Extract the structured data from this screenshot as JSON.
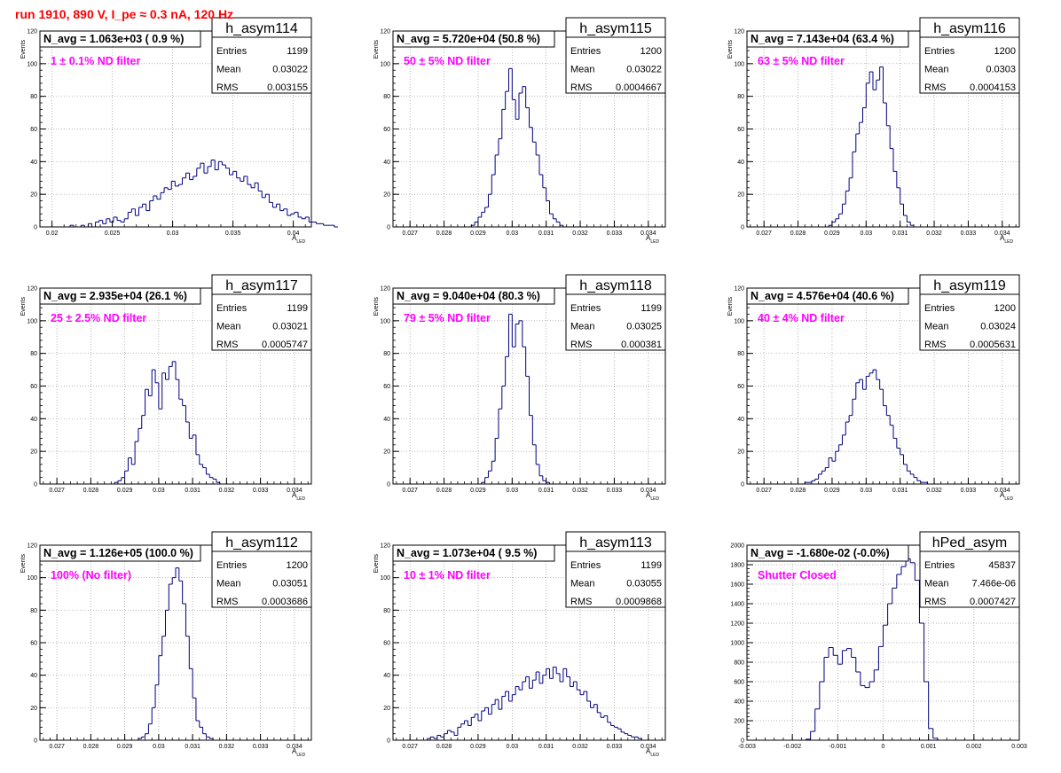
{
  "page": {
    "run_title": "run 1910,   890 V, I_pe ≈ 0.3 nA, 120 Hz"
  },
  "chart_data": [
    {
      "type": "bar",
      "hist": "h_asym114",
      "label": "1 ± 0.1% ND filter",
      "navg": "N_avg = 1.063e+03 ( 0.9 %)",
      "stats": {
        "entries": "1199",
        "mean": "0.03022",
        "rms": "0.003155"
      },
      "xlabel": "A",
      "xlabel_sub": "LED",
      "ylabel": "Events",
      "xlim": [
        0.019,
        0.0415
      ],
      "ylim": [
        0,
        120
      ],
      "xticks": [
        0.02,
        0.025,
        0.03,
        0.035,
        0.04
      ],
      "xticklabels": [
        "0.02",
        "0.025",
        "0.03",
        "0.035",
        "0.04"
      ],
      "yticks": [
        0,
        20,
        40,
        60,
        80,
        100,
        120
      ],
      "yticklabels": [
        "0",
        "20",
        "40",
        "60",
        "80",
        "100",
        "120"
      ],
      "grid": true,
      "x_start": 0.0215,
      "bin_width": 0.0003,
      "values": [
        1,
        0,
        0,
        1,
        0,
        2,
        0,
        3,
        4,
        2,
        5,
        3,
        6,
        4,
        3,
        5,
        9,
        11,
        7,
        12,
        14,
        10,
        16,
        19,
        17,
        21,
        24,
        23,
        28,
        25,
        26,
        30,
        33,
        29,
        31,
        36,
        39,
        33,
        37,
        41,
        35,
        40,
        38,
        36,
        32,
        34,
        30,
        28,
        31,
        26,
        24,
        27,
        22,
        18,
        20,
        15,
        12,
        14,
        10,
        11,
        7,
        8,
        9,
        6,
        5,
        6,
        3,
        3,
        2,
        2,
        1,
        1,
        1,
        0
      ]
    },
    {
      "type": "bar",
      "hist": "h_asym115",
      "label": "50 ± 5% ND filter",
      "navg": "N_avg = 5.720e+04 (50.8 %)",
      "stats": {
        "entries": "1200",
        "mean": "0.03022",
        "rms": "0.0004667"
      },
      "xlabel": "A",
      "xlabel_sub": "LED",
      "ylabel": "Events",
      "xlim": [
        0.0265,
        0.0345
      ],
      "ylim": [
        0,
        120
      ],
      "xticks": [
        0.027,
        0.028,
        0.029,
        0.03,
        0.031,
        0.032,
        0.033,
        0.034
      ],
      "xticklabels": [
        "0.027",
        "0.028",
        "0.029",
        "0.03",
        "0.031",
        "0.032",
        "0.033",
        "0.034"
      ],
      "yticks": [
        0,
        20,
        40,
        60,
        80,
        100,
        120
      ],
      "yticklabels": [
        "0",
        "20",
        "40",
        "60",
        "80",
        "100",
        "120"
      ],
      "grid": true,
      "x_start": 0.0288,
      "bin_width": 0.0001,
      "values": [
        1,
        3,
        6,
        9,
        12,
        20,
        32,
        44,
        54,
        72,
        83,
        97,
        78,
        66,
        82,
        86,
        73,
        61,
        52,
        44,
        32,
        24,
        16,
        8,
        5,
        3,
        1
      ]
    },
    {
      "type": "bar",
      "hist": "h_asym116",
      "label": "63 ± 5% ND filter",
      "navg": "N_avg = 7.143e+04 (63.4 %)",
      "stats": {
        "entries": "1200",
        "mean": "0.0303",
        "rms": "0.0004153"
      },
      "xlabel": "A",
      "xlabel_sub": "LED",
      "ylabel": "Events",
      "xlim": [
        0.0265,
        0.0345
      ],
      "ylim": [
        0,
        120
      ],
      "xticks": [
        0.027,
        0.028,
        0.029,
        0.03,
        0.031,
        0.032,
        0.033,
        0.034
      ],
      "xticklabels": [
        "0.027",
        "0.028",
        "0.029",
        "0.03",
        "0.031",
        "0.032",
        "0.033",
        "0.034"
      ],
      "yticks": [
        0,
        20,
        40,
        60,
        80,
        100,
        120
      ],
      "yticklabels": [
        "0",
        "20",
        "40",
        "60",
        "80",
        "100",
        "120"
      ],
      "grid": true,
      "x_start": 0.0289,
      "bin_width": 0.0001,
      "values": [
        1,
        3,
        5,
        8,
        14,
        22,
        30,
        46,
        57,
        64,
        73,
        88,
        95,
        84,
        90,
        98,
        76,
        62,
        48,
        34,
        24,
        14,
        7,
        3,
        1
      ]
    },
    {
      "type": "bar",
      "hist": "h_asym117",
      "label": "25 ± 2.5% ND filter",
      "navg": "N_avg = 2.935e+04 (26.1 %)",
      "stats": {
        "entries": "1199",
        "mean": "0.03021",
        "rms": "0.0005747"
      },
      "xlabel": "A",
      "xlabel_sub": "LED",
      "ylabel": "Events",
      "xlim": [
        0.0265,
        0.0345
      ],
      "ylim": [
        0,
        120
      ],
      "xticks": [
        0.027,
        0.028,
        0.029,
        0.03,
        0.031,
        0.032,
        0.033,
        0.034
      ],
      "xticklabels": [
        "0.027",
        "0.028",
        "0.029",
        "0.03",
        "0.031",
        "0.032",
        "0.033",
        "0.034"
      ],
      "yticks": [
        0,
        20,
        40,
        60,
        80,
        100,
        120
      ],
      "yticklabels": [
        "0",
        "20",
        "40",
        "60",
        "80",
        "100",
        "120"
      ],
      "grid": true,
      "x_start": 0.0287,
      "bin_width": 0.0001,
      "values": [
        1,
        2,
        4,
        8,
        16,
        12,
        26,
        34,
        42,
        58,
        54,
        70,
        62,
        46,
        68,
        64,
        72,
        75,
        64,
        52,
        48,
        38,
        28,
        30,
        18,
        12,
        10,
        6,
        4,
        3,
        1
      ]
    },
    {
      "type": "bar",
      "hist": "h_asym118",
      "label": "79 ± 5% ND filter",
      "navg": "N_avg = 9.040e+04 (80.3 %)",
      "stats": {
        "entries": "1199",
        "mean": "0.03025",
        "rms": "0.000381"
      },
      "xlabel": "A",
      "xlabel_sub": "LED",
      "ylabel": "Events",
      "xlim": [
        0.0265,
        0.0345
      ],
      "ylim": [
        0,
        120
      ],
      "xticks": [
        0.027,
        0.028,
        0.029,
        0.03,
        0.031,
        0.032,
        0.033,
        0.034
      ],
      "xticklabels": [
        "0.027",
        "0.028",
        "0.029",
        "0.03",
        "0.031",
        "0.032",
        "0.033",
        "0.034"
      ],
      "yticks": [
        0,
        20,
        40,
        60,
        80,
        100,
        120
      ],
      "yticklabels": [
        "0",
        "20",
        "40",
        "60",
        "80",
        "100",
        "120"
      ],
      "grid": true,
      "x_start": 0.0291,
      "bin_width": 0.0001,
      "values": [
        1,
        4,
        8,
        14,
        28,
        46,
        60,
        78,
        104,
        84,
        98,
        100,
        84,
        66,
        42,
        24,
        12,
        5,
        2,
        1
      ]
    },
    {
      "type": "bar",
      "hist": "h_asym119",
      "label": "40 ± 4% ND filter",
      "navg": "N_avg = 4.576e+04 (40.6 %)",
      "stats": {
        "entries": "1200",
        "mean": "0.03024",
        "rms": "0.0005631"
      },
      "xlabel": "A",
      "xlabel_sub": "LED",
      "ylabel": "Events",
      "xlim": [
        0.0265,
        0.0345
      ],
      "ylim": [
        0,
        120
      ],
      "xticks": [
        0.027,
        0.028,
        0.029,
        0.03,
        0.031,
        0.032,
        0.033,
        0.034
      ],
      "xticklabels": [
        "0.027",
        "0.028",
        "0.029",
        "0.03",
        "0.031",
        "0.032",
        "0.033",
        "0.034"
      ],
      "yticks": [
        0,
        20,
        40,
        60,
        80,
        100,
        120
      ],
      "yticklabels": [
        "0",
        "20",
        "40",
        "60",
        "80",
        "100",
        "120"
      ],
      "grid": true,
      "x_start": 0.0282,
      "bin_width": 0.0001,
      "values": [
        1,
        1,
        2,
        3,
        6,
        8,
        10,
        16,
        14,
        20,
        24,
        30,
        38,
        42,
        52,
        62,
        64,
        58,
        66,
        68,
        70,
        64,
        58,
        48,
        42,
        36,
        28,
        22,
        18,
        12,
        8,
        6,
        4,
        2,
        1,
        1
      ]
    },
    {
      "type": "bar",
      "hist": "h_asym112",
      "label": "100% (No filter)",
      "navg": "N_avg = 1.126e+05 (100.0 %)",
      "stats": {
        "entries": "1200",
        "mean": "0.03051",
        "rms": "0.0003686"
      },
      "xlabel": "A",
      "xlabel_sub": "LED",
      "ylabel": "Events",
      "xlim": [
        0.0265,
        0.0345
      ],
      "ylim": [
        0,
        120
      ],
      "xticks": [
        0.027,
        0.028,
        0.029,
        0.03,
        0.031,
        0.032,
        0.033,
        0.034
      ],
      "xticklabels": [
        "0.027",
        "0.028",
        "0.029",
        "0.03",
        "0.031",
        "0.032",
        "0.033",
        "0.034"
      ],
      "yticks": [
        0,
        20,
        40,
        60,
        80,
        100,
        120
      ],
      "yticklabels": [
        "0",
        "20",
        "40",
        "60",
        "80",
        "100",
        "120"
      ],
      "grid": true,
      "x_start": 0.0294,
      "bin_width": 0.0001,
      "values": [
        1,
        2,
        4,
        10,
        20,
        34,
        52,
        64,
        80,
        96,
        100,
        106,
        98,
        84,
        64,
        44,
        26,
        12,
        8,
        4,
        2,
        1
      ]
    },
    {
      "type": "bar",
      "hist": "h_asym113",
      "label": "10 ± 1% ND filter",
      "navg": "N_avg = 1.073e+04 ( 9.5 %)",
      "stats": {
        "entries": "1199",
        "mean": "0.03055",
        "rms": "0.0009868"
      },
      "xlabel": "A",
      "xlabel_sub": "LED",
      "ylabel": "Events",
      "xlim": [
        0.0265,
        0.0345
      ],
      "ylim": [
        0,
        120
      ],
      "xticks": [
        0.027,
        0.028,
        0.029,
        0.03,
        0.031,
        0.032,
        0.033,
        0.034
      ],
      "xticklabels": [
        "0.027",
        "0.028",
        "0.029",
        "0.03",
        "0.031",
        "0.032",
        "0.033",
        "0.034"
      ],
      "yticks": [
        0,
        20,
        40,
        60,
        80,
        100,
        120
      ],
      "yticklabels": [
        "0",
        "20",
        "40",
        "60",
        "80",
        "100",
        "120"
      ],
      "grid": true,
      "x_start": 0.0275,
      "bin_width": 0.0001,
      "values": [
        1,
        2,
        1,
        3,
        2,
        4,
        6,
        5,
        3,
        8,
        10,
        12,
        9,
        14,
        16,
        12,
        18,
        20,
        16,
        22,
        25,
        19,
        27,
        30,
        24,
        28,
        33,
        31,
        36,
        39,
        32,
        37,
        42,
        35,
        40,
        44,
        38,
        45,
        41,
        36,
        44,
        39,
        33,
        36,
        31,
        28,
        30,
        24,
        20,
        22,
        17,
        14,
        15,
        11,
        9,
        8,
        7,
        5,
        4,
        3,
        2,
        2,
        1
      ]
    },
    {
      "type": "bar",
      "hist": "hPed_asym",
      "label": "Shutter Closed",
      "navg": "N_avg = -1.680e-02 (-0.0%)",
      "stats": {
        "entries": "45837",
        "mean": "7.466e-06",
        "rms": "0.0007427"
      },
      "xlabel": "",
      "xlabel_sub": "",
      "ylabel": "",
      "xlim": [
        -0.003,
        0.003
      ],
      "ylim": [
        0,
        2000
      ],
      "xticks": [
        -0.003,
        -0.002,
        -0.001,
        0,
        0.001,
        0.002,
        0.003
      ],
      "xticklabels": [
        "-0.003",
        "-0.002",
        "-0.001",
        "0",
        "0.001",
        "0.002",
        "0.003"
      ],
      "yticks": [
        0,
        200,
        400,
        600,
        800,
        1000,
        1200,
        1400,
        1600,
        1800,
        2000
      ],
      "yticklabels": [
        "0",
        "200",
        "400",
        "600",
        "800",
        "1000",
        "1200",
        "1400",
        "1600",
        "1800",
        "2000"
      ],
      "grid": true,
      "x_start": -0.0017,
      "bin_width": 0.0001,
      "values": [
        10,
        90,
        320,
        600,
        850,
        950,
        870,
        780,
        920,
        940,
        850,
        700,
        560,
        540,
        600,
        720,
        960,
        1180,
        1400,
        1560,
        1700,
        1780,
        1860,
        1820,
        1640,
        1200,
        600,
        120,
        20
      ]
    }
  ]
}
